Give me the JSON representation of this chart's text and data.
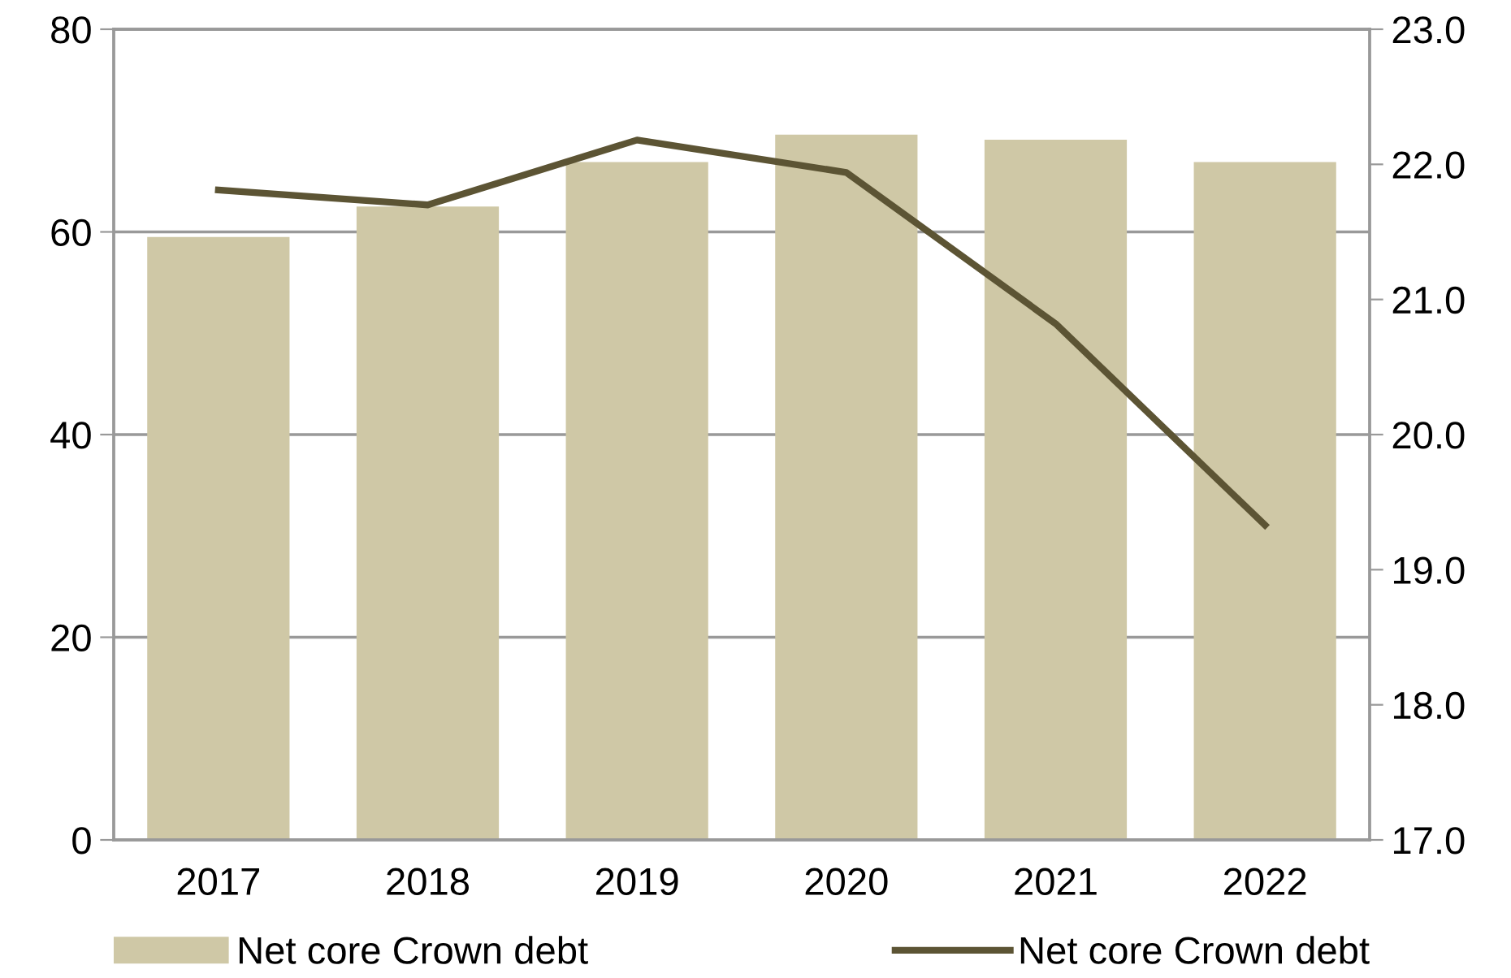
{
  "chart_data": {
    "type": "bar",
    "categories": [
      "2017",
      "2018",
      "2019",
      "2020",
      "2021",
      "2022"
    ],
    "series": [
      {
        "name": "Net core Crown debt",
        "color": "#cfc8a6",
        "values": [
          59.5,
          62.5,
          66.9,
          69.6,
          69.1,
          66.9
        ]
      },
      {
        "name": "Net core Crown debt",
        "type": "line",
        "axis": "y2",
        "color": "#5c5434",
        "values": [
          21.81,
          21.7,
          22.18,
          21.94,
          20.82,
          19.33
        ]
      }
    ],
    "ylim": [
      0,
      80
    ],
    "yticks": [
      0,
      20,
      40,
      60,
      80
    ],
    "y2lim": [
      17,
      23
    ],
    "y2ticks": [
      {
        "value": 17,
        "label": "17.0"
      },
      {
        "value": 18,
        "label": "18.0"
      },
      {
        "value": 19,
        "label": "19.0"
      },
      {
        "value": 20,
        "label": "20.0"
      },
      {
        "value": 21,
        "label": "21.0"
      },
      {
        "value": 22,
        "label": "22.0"
      },
      {
        "value": 23,
        "label": "23.0"
      }
    ],
    "grid": "y",
    "legend": "bottom",
    "marker": "none",
    "line_style": "solid"
  }
}
